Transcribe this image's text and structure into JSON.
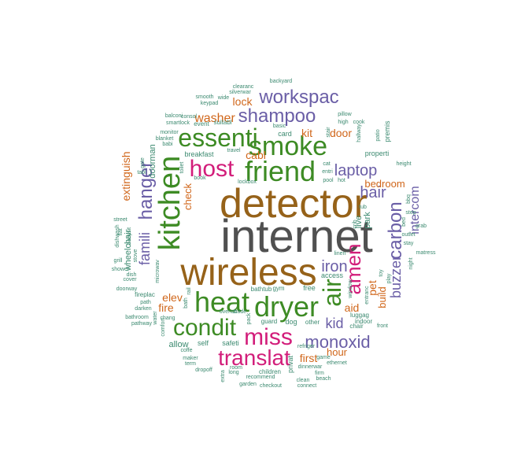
{
  "palette": {
    "gray": "#505050",
    "brown": "#966219",
    "green": "#3d8b24",
    "magenta": "#d21d7a",
    "purple": "#6a5ea6",
    "orange": "#d0661a",
    "teal": "#3c8a70"
  },
  "words": [
    {
      "text": "internet",
      "color": "gray"
    },
    {
      "text": "detector",
      "color": "brown"
    },
    {
      "text": "wireless",
      "color": "brown"
    },
    {
      "text": "kitchen",
      "color": "green"
    },
    {
      "text": "heat",
      "color": "green"
    },
    {
      "text": "dryer",
      "color": "green"
    },
    {
      "text": "friend",
      "color": "green"
    },
    {
      "text": "air",
      "color": "green"
    },
    {
      "text": "smoke",
      "color": "green"
    },
    {
      "text": "essenti",
      "color": "green"
    },
    {
      "text": "condit",
      "color": "green"
    },
    {
      "text": "host",
      "color": "magenta"
    },
    {
      "text": "miss",
      "color": "magenta"
    },
    {
      "text": "translat",
      "color": "magenta"
    },
    {
      "text": "amen",
      "color": "magenta"
    },
    {
      "text": "hanger",
      "color": "purple"
    },
    {
      "text": "carbon",
      "color": "purple"
    },
    {
      "text": "shampoo",
      "color": "purple"
    },
    {
      "text": "workspac",
      "color": "purple"
    },
    {
      "text": "monoxid",
      "color": "purple"
    },
    {
      "text": "laptop",
      "color": "purple"
    },
    {
      "text": "hair",
      "color": "purple"
    },
    {
      "text": "iron",
      "color": "purple"
    },
    {
      "text": "famili",
      "color": "purple"
    },
    {
      "text": "intercom",
      "color": "purple"
    },
    {
      "text": "buzzer",
      "color": "purple"
    },
    {
      "text": "kid",
      "color": "purple"
    },
    {
      "text": "washer",
      "color": "orange"
    },
    {
      "text": "extinguish",
      "color": "orange"
    },
    {
      "text": "elev",
      "color": "orange"
    },
    {
      "text": "fire",
      "color": "orange"
    },
    {
      "text": "kit",
      "color": "orange"
    },
    {
      "text": "door",
      "color": "orange"
    },
    {
      "text": "cabl",
      "color": "orange"
    },
    {
      "text": "lock",
      "color": "orange"
    },
    {
      "text": "bedroom",
      "color": "orange"
    },
    {
      "text": "pet",
      "color": "orange"
    },
    {
      "text": "build",
      "color": "orange"
    },
    {
      "text": "aid",
      "color": "orange"
    },
    {
      "text": "first",
      "color": "orange"
    },
    {
      "text": "hour",
      "color": "orange"
    },
    {
      "text": "check",
      "color": "orange"
    },
    {
      "text": "allow",
      "color": "teal"
    },
    {
      "text": "self",
      "color": "teal"
    },
    {
      "text": "safeti",
      "color": "teal"
    },
    {
      "text": "wheelchair",
      "color": "teal"
    },
    {
      "text": "doorman",
      "color": "teal"
    },
    {
      "text": "live",
      "color": "teal"
    },
    {
      "text": "park",
      "color": "teal"
    },
    {
      "text": "breakfast",
      "color": "teal"
    },
    {
      "text": "card",
      "color": "teal"
    },
    {
      "text": "properti",
      "color": "teal"
    },
    {
      "text": "premis",
      "color": "teal"
    },
    {
      "text": "event",
      "color": "teal"
    },
    {
      "text": "suitabl",
      "color": "teal"
    },
    {
      "text": "fireplac",
      "color": "teal"
    },
    {
      "text": "access",
      "color": "teal"
    },
    {
      "text": "free",
      "color": "teal"
    },
    {
      "text": "gym",
      "color": "teal"
    },
    {
      "text": "bathtub",
      "color": "teal"
    },
    {
      "text": "dog",
      "color": "teal"
    },
    {
      "text": "guard",
      "color": "teal"
    },
    {
      "text": "other",
      "color": "teal"
    },
    {
      "text": "indoor",
      "color": "teal"
    },
    {
      "text": "front",
      "color": "teal"
    },
    {
      "text": "luggag",
      "color": "teal"
    },
    {
      "text": "chair",
      "color": "teal"
    },
    {
      "text": "game",
      "color": "teal"
    },
    {
      "text": "ethernet",
      "color": "teal"
    },
    {
      "text": "refriger",
      "color": "teal"
    },
    {
      "text": "dinnerwar",
      "color": "teal"
    },
    {
      "text": "privat",
      "color": "teal"
    },
    {
      "text": "children",
      "color": "teal"
    },
    {
      "text": "recommend",
      "color": "teal"
    },
    {
      "text": "firm",
      "color": "teal"
    },
    {
      "text": "beach",
      "color": "teal"
    },
    {
      "text": "clean",
      "color": "teal"
    },
    {
      "text": "connect",
      "color": "teal"
    },
    {
      "text": "checkout",
      "color": "teal"
    },
    {
      "text": "garden",
      "color": "teal"
    },
    {
      "text": "extra",
      "color": "teal"
    },
    {
      "text": "long",
      "color": "teal"
    },
    {
      "text": "room",
      "color": "teal"
    },
    {
      "text": "term",
      "color": "teal"
    },
    {
      "text": "maker",
      "color": "teal"
    },
    {
      "text": "coffe",
      "color": "teal"
    },
    {
      "text": "dropoff",
      "color": "teal"
    },
    {
      "text": "bathroom",
      "color": "teal"
    },
    {
      "text": "pathway",
      "color": "teal"
    },
    {
      "text": "path",
      "color": "teal"
    },
    {
      "text": "darken",
      "color": "teal"
    },
    {
      "text": "doorway",
      "color": "teal"
    },
    {
      "text": "cover",
      "color": "teal"
    },
    {
      "text": "shower",
      "color": "teal"
    },
    {
      "text": "dish",
      "color": "teal"
    },
    {
      "text": "grill",
      "color": "teal"
    },
    {
      "text": "street",
      "color": "teal"
    },
    {
      "text": "dishwash",
      "color": "teal"
    },
    {
      "text": "babysit",
      "color": "teal"
    },
    {
      "text": "flat",
      "color": "teal"
    },
    {
      "text": "stove",
      "color": "teal"
    },
    {
      "text": "microwav",
      "color": "teal"
    },
    {
      "text": "tabl",
      "color": "teal"
    },
    {
      "text": "gate",
      "color": "teal"
    },
    {
      "text": "babi",
      "color": "teal"
    },
    {
      "text": "blanket",
      "color": "teal"
    },
    {
      "text": "monitor",
      "color": "teal"
    },
    {
      "text": "smartlock",
      "color": "teal"
    },
    {
      "text": "balconi",
      "color": "teal"
    },
    {
      "text": "consol",
      "color": "teal"
    },
    {
      "text": "smooth",
      "color": "teal"
    },
    {
      "text": "keypad",
      "color": "teal"
    },
    {
      "text": "wide",
      "color": "teal"
    },
    {
      "text": "silverwar",
      "color": "teal"
    },
    {
      "text": "clearanc",
      "color": "teal"
    },
    {
      "text": "backyard",
      "color": "teal"
    },
    {
      "text": "basic",
      "color": "teal"
    },
    {
      "text": "pillow",
      "color": "teal"
    },
    {
      "text": "high",
      "color": "teal"
    },
    {
      "text": "cook",
      "color": "teal"
    },
    {
      "text": "hallway",
      "color": "teal"
    },
    {
      "text": "patio",
      "color": "teal"
    },
    {
      "text": "stair",
      "color": "teal"
    },
    {
      "text": "height",
      "color": "teal"
    },
    {
      "text": "bbq",
      "color": "teal"
    },
    {
      "text": "step",
      "color": "teal"
    },
    {
      "text": "grab",
      "color": "teal"
    },
    {
      "text": "outlet",
      "color": "teal"
    },
    {
      "text": "bed",
      "color": "teal"
    },
    {
      "text": "stay",
      "color": "teal"
    },
    {
      "text": "matress",
      "color": "teal"
    },
    {
      "text": "night",
      "color": "teal"
    },
    {
      "text": "toy",
      "color": "teal"
    },
    {
      "text": "play",
      "color": "teal"
    },
    {
      "text": "crib",
      "color": "teal"
    },
    {
      "text": "tub",
      "color": "teal"
    },
    {
      "text": "window",
      "color": "teal"
    },
    {
      "text": "entranc",
      "color": "teal"
    },
    {
      "text": "linen",
      "color": "teal"
    },
    {
      "text": "cat",
      "color": "teal"
    },
    {
      "text": "entri",
      "color": "teal"
    },
    {
      "text": "pool",
      "color": "teal"
    },
    {
      "text": "hot",
      "color": "teal"
    },
    {
      "text": "travel",
      "color": "teal"
    },
    {
      "text": "toilet",
      "color": "teal"
    },
    {
      "text": "book",
      "color": "teal"
    },
    {
      "text": "lockbox",
      "color": "teal"
    },
    {
      "text": "chang",
      "color": "teal"
    },
    {
      "text": "rail",
      "color": "teal"
    },
    {
      "text": "bath",
      "color": "teal"
    },
    {
      "text": "ovenshade",
      "color": "teal"
    },
    {
      "text": "lit",
      "color": "teal"
    },
    {
      "text": "pack",
      "color": "teal"
    },
    {
      "text": "water",
      "color": "teal"
    },
    {
      "text": "comfort",
      "color": "teal"
    }
  ]
}
